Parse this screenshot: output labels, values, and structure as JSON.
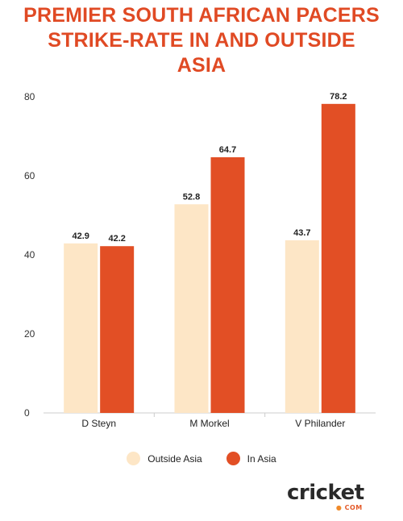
{
  "title_lines": [
    "PREMIER SOUTH AFRICAN PACERS",
    "STRIKE-RATE IN AND OUTSIDE",
    "ASIA"
  ],
  "chart_data": {
    "type": "bar",
    "title": "PREMIER SOUTH AFRICAN PACERS STRIKE-RATE IN AND OUTSIDE ASIA",
    "categories": [
      "D Steyn",
      "M Morkel",
      "V Philander"
    ],
    "series": [
      {
        "name": "Outside Asia",
        "values": [
          42.9,
          52.8,
          43.7
        ],
        "color": "#fde6c6"
      },
      {
        "name": "In Asia",
        "values": [
          42.2,
          64.7,
          78.2
        ],
        "color": "#e24f25"
      }
    ],
    "ylim": [
      0,
      80
    ],
    "yticks": [
      0,
      20,
      40,
      60,
      80
    ],
    "xlabel": "",
    "ylabel": "",
    "grid": false,
    "legend_position": "bottom"
  },
  "logo": {
    "text": "cricket",
    "sub": "COM"
  },
  "colors": {
    "accent": "#e04a24",
    "axis": "#cccccc"
  }
}
